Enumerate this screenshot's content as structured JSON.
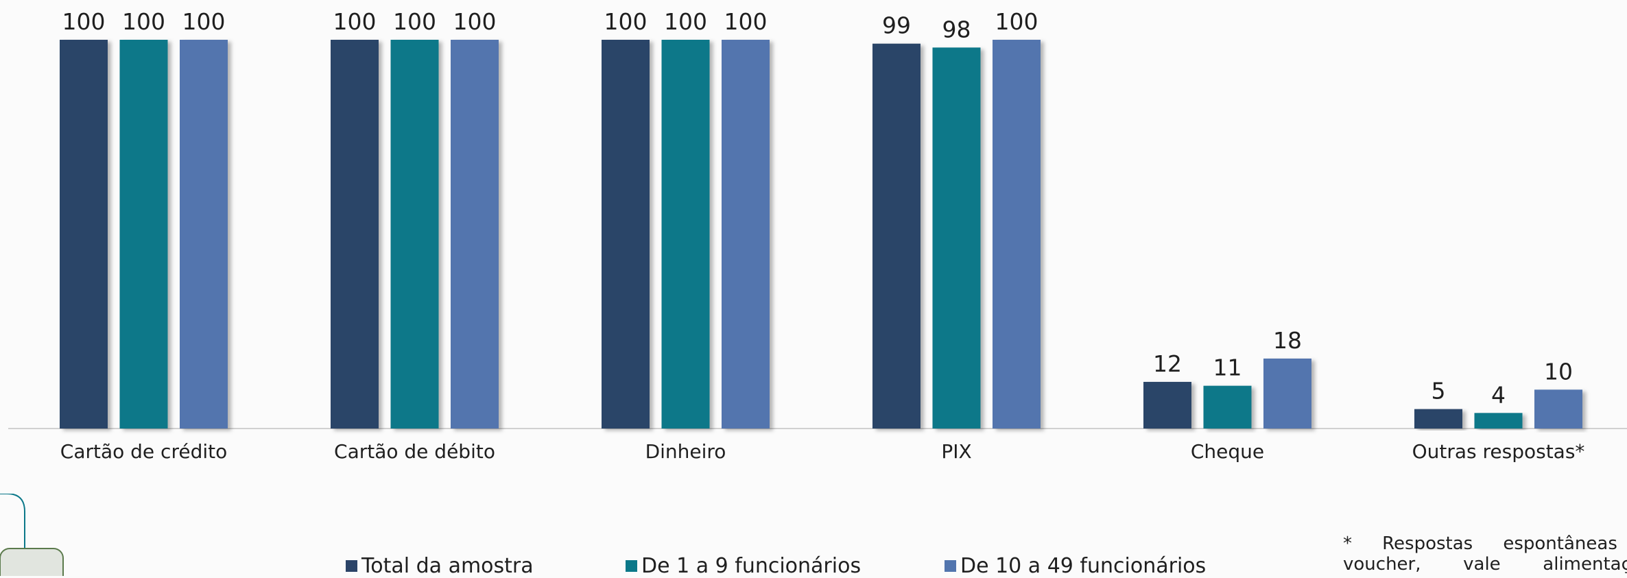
{
  "chart_data": {
    "type": "bar",
    "categories": [
      "Cartão de crédito",
      "Cartão de débito",
      "Dinheiro",
      "PIX",
      "Cheque",
      "Outras respostas*"
    ],
    "series": [
      {
        "name": "Total da amostra",
        "values": [
          100,
          100,
          100,
          99,
          12,
          5
        ],
        "labels": [
          "100",
          "100",
          "100",
          "99",
          "12",
          "5"
        ],
        "color": "#2b4468"
      },
      {
        "name": "De 1 a 9 funcionários",
        "values": [
          100,
          100,
          100,
          98,
          11,
          4
        ],
        "labels": [
          "100",
          "100",
          "100",
          "98",
          "11",
          "4"
        ],
        "color": "#0b7889"
      },
      {
        "name": "De 10 a 49 funcionários",
        "values": [
          100,
          100,
          100,
          100,
          18,
          10
        ],
        "labels": [
          "100",
          "100",
          "100",
          "100",
          "18",
          "10"
        ],
        "color": "#5275ae"
      }
    ],
    "ylim": [
      0,
      100
    ],
    "grid": false,
    "legend_position": "bottom",
    "title": "",
    "xlabel": "",
    "ylabel": ""
  },
  "footnote": "* Respostas espontâneas e voucher, vale alimentação,"
}
